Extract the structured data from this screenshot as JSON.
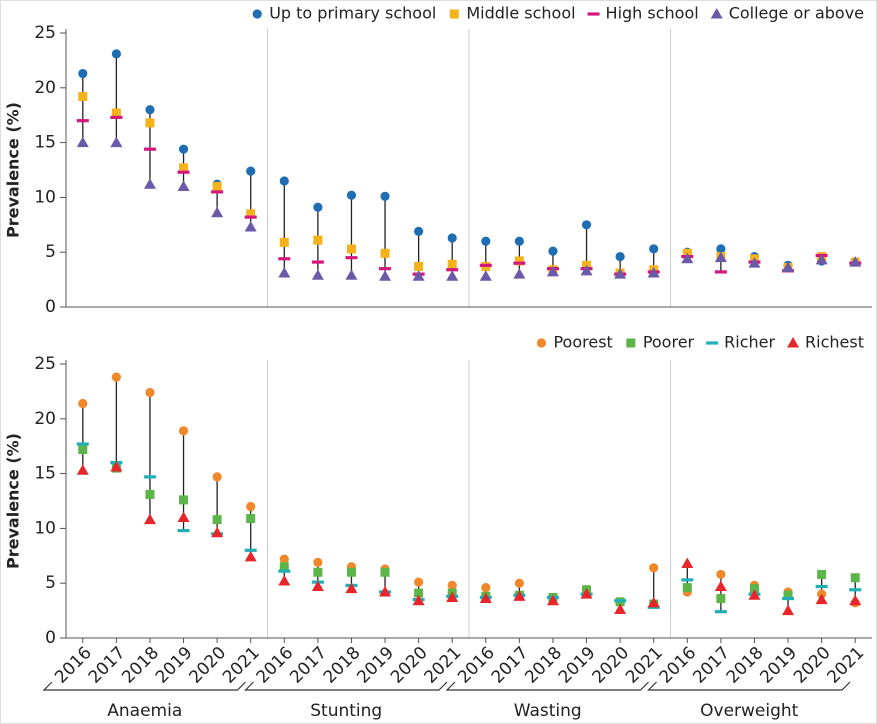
{
  "chart_data": [
    {
      "type": "dot",
      "ylabel": "Prevalence (%)",
      "ylim": [
        0,
        25
      ],
      "yticks": [
        0,
        5,
        10,
        15,
        20,
        25
      ],
      "series": [
        {
          "name": "Up to primary school",
          "color": "#1f6db3",
          "marker": "circle",
          "values": [
            21.3,
            23.1,
            18.0,
            14.4,
            11.2,
            12.4,
            11.5,
            9.1,
            10.2,
            10.1,
            6.9,
            6.3,
            6.0,
            6.0,
            5.1,
            7.5,
            4.6,
            5.3,
            5.0,
            5.3,
            4.6,
            3.8,
            4.2,
            4.1
          ]
        },
        {
          "name": "Middle school",
          "color": "#f6b21a",
          "marker": "square",
          "values": [
            19.2,
            17.7,
            16.8,
            12.7,
            11.0,
            8.5,
            5.9,
            6.1,
            5.3,
            4.9,
            3.7,
            3.9,
            3.7,
            4.2,
            3.4,
            3.8,
            3.1,
            3.4,
            4.9,
            4.6,
            4.4,
            3.6,
            4.6,
            4.1
          ]
        },
        {
          "name": "High school",
          "color": "#d4177e",
          "marker": "dash",
          "values": [
            17.0,
            17.3,
            14.4,
            12.3,
            10.5,
            8.2,
            4.4,
            4.1,
            4.5,
            3.5,
            3.0,
            3.4,
            3.8,
            4.0,
            3.5,
            3.5,
            3.0,
            3.2,
            4.6,
            3.2,
            4.1,
            3.3,
            4.7,
            4.0
          ]
        },
        {
          "name": "College or above",
          "color": "#6a5aa8",
          "marker": "triangle",
          "values": [
            15.0,
            15.0,
            11.2,
            11.0,
            8.6,
            7.3,
            3.1,
            2.9,
            2.9,
            2.8,
            2.8,
            2.8,
            2.8,
            3.0,
            3.2,
            3.3,
            3.0,
            3.1,
            4.4,
            4.5,
            4.0,
            3.6,
            4.3,
            4.1
          ]
        }
      ]
    },
    {
      "type": "dot",
      "ylabel": "Prevalence (%)",
      "ylim": [
        0,
        25
      ],
      "yticks": [
        0,
        5,
        10,
        15,
        20,
        25
      ],
      "categories": [
        "2016",
        "2017",
        "2018",
        "2019",
        "2020",
        "2021",
        "2016",
        "2017",
        "2018",
        "2019",
        "2020",
        "2021",
        "2016",
        "2017",
        "2018",
        "2019",
        "2020",
        "2021",
        "2016",
        "2017",
        "2018",
        "2019",
        "2020",
        "2021"
      ],
      "groups": [
        "Anaemia",
        "Stunting",
        "Wasting",
        "Overweight"
      ],
      "series": [
        {
          "name": "Poorest",
          "color": "#f0882a",
          "marker": "circle",
          "values": [
            21.4,
            23.8,
            22.4,
            18.9,
            14.7,
            12.0,
            7.2,
            6.9,
            6.5,
            6.3,
            5.1,
            4.8,
            4.6,
            5.0,
            3.6,
            4.4,
            3.3,
            6.4,
            4.2,
            5.8,
            4.8,
            4.2,
            4.0,
            3.2
          ]
        },
        {
          "name": "Poorer",
          "color": "#5bb548",
          "marker": "square",
          "values": [
            17.2,
            15.5,
            13.1,
            12.6,
            10.8,
            10.9,
            6.5,
            6.0,
            6.0,
            6.0,
            4.1,
            4.1,
            3.8,
            3.9,
            3.7,
            4.4,
            3.3,
            3.1,
            4.6,
            3.6,
            4.5,
            3.9,
            5.8,
            5.5
          ]
        },
        {
          "name": "Richer",
          "color": "#1fb0b6",
          "marker": "dash",
          "values": [
            17.7,
            16.0,
            14.7,
            9.8,
            9.5,
            8.0,
            6.1,
            5.1,
            4.8,
            4.2,
            3.5,
            3.8,
            3.7,
            3.9,
            3.7,
            4.0,
            3.4,
            2.8,
            5.3,
            2.4,
            4.0,
            3.6,
            4.7,
            4.4
          ]
        },
        {
          "name": "Richest",
          "color": "#e6262b",
          "marker": "triangle",
          "values": [
            15.3,
            15.6,
            10.8,
            11.0,
            9.6,
            7.4,
            5.2,
            4.7,
            4.5,
            4.2,
            3.4,
            3.7,
            3.6,
            3.8,
            3.4,
            4.0,
            2.6,
            3.2,
            6.8,
            4.7,
            3.9,
            2.5,
            3.5,
            3.4
          ]
        }
      ]
    }
  ]
}
